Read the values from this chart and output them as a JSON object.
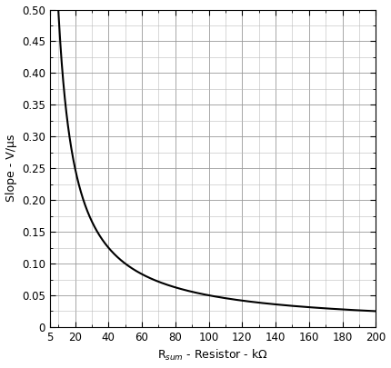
{
  "xlabel": "R$_{sum}$ - Resistor - kΩ",
  "ylabel": "Slope - V/μs",
  "xlim": [
    5,
    200
  ],
  "ylim": [
    0,
    0.5
  ],
  "xticks_major": [
    5,
    20,
    40,
    60,
    80,
    100,
    120,
    140,
    160,
    180,
    200
  ],
  "xticks_minor": [
    10,
    30,
    50,
    70,
    90,
    110,
    130,
    150,
    170,
    190
  ],
  "yticks_major": [
    0,
    0.05,
    0.1,
    0.15,
    0.2,
    0.25,
    0.3,
    0.35,
    0.4,
    0.45,
    0.5
  ],
  "yticks_minor": [
    0.025,
    0.075,
    0.125,
    0.175,
    0.225,
    0.275,
    0.325,
    0.375,
    0.425,
    0.475
  ],
  "ytick_labels": [
    "0",
    "0.05",
    "0.10",
    "0.15",
    "0.20",
    "0.25",
    "0.30",
    "0.35",
    "0.40",
    "0.45",
    "0.50"
  ],
  "line_color": "#000000",
  "background_color": "#ffffff",
  "grid_color_major": "#999999",
  "grid_color_minor": "#bbbbbb",
  "k_constant": 5.0,
  "xlabel_fontsize": 9,
  "ylabel_fontsize": 9,
  "tick_fontsize": 8.5
}
